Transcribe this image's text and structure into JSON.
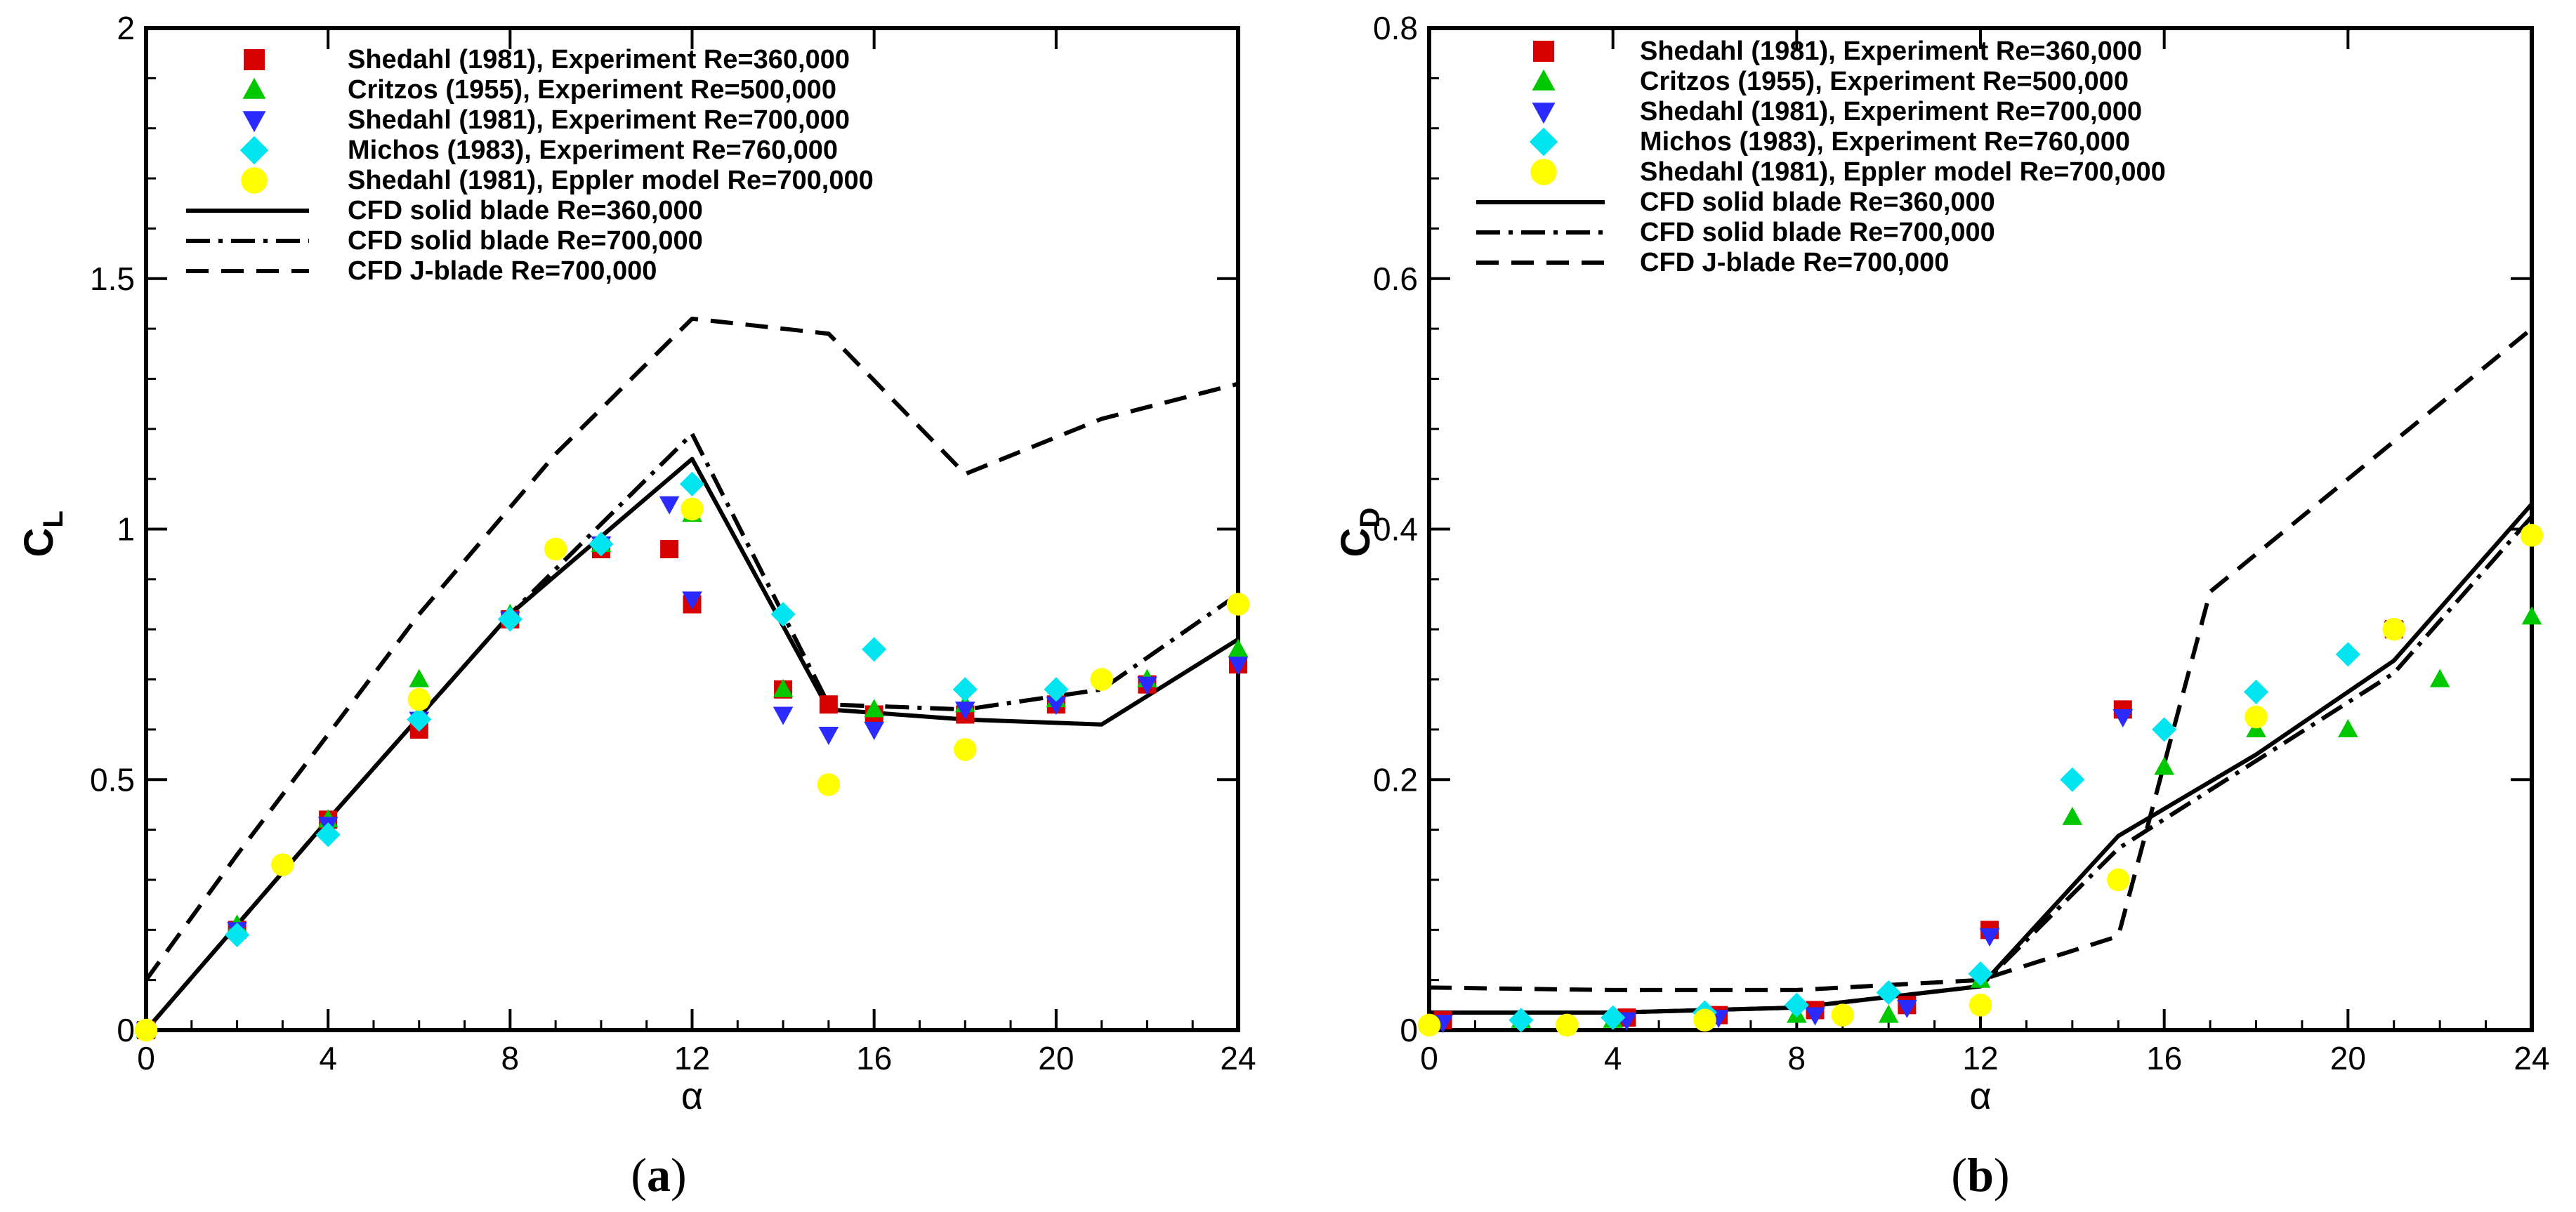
{
  "chart_data": [
    {
      "id": "a",
      "type": "scatter",
      "caption_open": "(",
      "caption_letter": "a",
      "caption_close": ")",
      "ylabel_main": "C",
      "ylabel_sub": "L",
      "xlabel": "α",
      "xlim": [
        0,
        24
      ],
      "ylim": [
        0,
        2
      ],
      "xticks": [
        0,
        4,
        8,
        12,
        16,
        20,
        24
      ],
      "xtick_labels": [
        "0",
        "4",
        "8",
        "12",
        "16",
        "20",
        "24"
      ],
      "yticks": [
        0,
        0.5,
        1,
        1.5,
        2
      ],
      "ytick_labels": [
        "0",
        "0.5",
        "1",
        "1.5",
        "2"
      ],
      "legend_position": "top-left",
      "series": [
        {
          "name": "Shedahl (1981), Experiment Re=360,000",
          "marker": "square",
          "color": "#d60000",
          "points": [
            [
              0,
              0
            ],
            [
              2,
              0.2
            ],
            [
              4,
              0.42
            ],
            [
              6,
              0.6
            ],
            [
              8,
              0.82
            ],
            [
              10,
              0.96
            ],
            [
              11.5,
              0.96
            ],
            [
              12,
              0.85
            ],
            [
              14,
              0.68
            ],
            [
              15,
              0.65
            ],
            [
              16,
              0.63
            ],
            [
              18,
              0.63
            ],
            [
              20,
              0.65
            ],
            [
              22,
              0.69
            ],
            [
              24,
              0.73
            ]
          ]
        },
        {
          "name": "Critzos (1955), Experiment Re=500,000",
          "marker": "triangle-up",
          "color": "#00c800",
          "points": [
            [
              0,
              0
            ],
            [
              2,
              0.21
            ],
            [
              4,
              0.42
            ],
            [
              6,
              0.7
            ],
            [
              8,
              0.83
            ],
            [
              10,
              0.97
            ],
            [
              12,
              1.03
            ],
            [
              14,
              0.68
            ],
            [
              16,
              0.64
            ],
            [
              18,
              0.65
            ],
            [
              20,
              0.66
            ],
            [
              22,
              0.7
            ],
            [
              24,
              0.76
            ]
          ]
        },
        {
          "name": "Shedahl (1981), Experiment Re=700,000",
          "marker": "triangle-down",
          "color": "#2b2bff",
          "points": [
            [
              0,
              0
            ],
            [
              2,
              0.2
            ],
            [
              4,
              0.41
            ],
            [
              6,
              0.62
            ],
            [
              8,
              0.82
            ],
            [
              10,
              0.97
            ],
            [
              11.5,
              1.05
            ],
            [
              12,
              0.86
            ],
            [
              14,
              0.63
            ],
            [
              15,
              0.59
            ],
            [
              16,
              0.6
            ],
            [
              18,
              0.64
            ],
            [
              20,
              0.65
            ],
            [
              22,
              0.69
            ],
            [
              24,
              0.73
            ]
          ]
        },
        {
          "name": "Michos (1983), Experiment Re=760,000",
          "marker": "diamond",
          "color": "#00e5f0",
          "points": [
            [
              2,
              0.19
            ],
            [
              4,
              0.39
            ],
            [
              6,
              0.62
            ],
            [
              8,
              0.82
            ],
            [
              10,
              0.97
            ],
            [
              12,
              1.09
            ],
            [
              14,
              0.83
            ],
            [
              16,
              0.76
            ],
            [
              18,
              0.68
            ],
            [
              20,
              0.68
            ]
          ]
        },
        {
          "name": "Shedahl (1981), Eppler model Re=700,000",
          "marker": "circle",
          "color": "#ffff00",
          "points": [
            [
              0,
              0
            ],
            [
              3,
              0.33
            ],
            [
              6,
              0.66
            ],
            [
              9,
              0.96
            ],
            [
              12,
              1.04
            ],
            [
              15,
              0.49
            ],
            [
              18,
              0.56
            ],
            [
              21,
              0.7
            ],
            [
              24,
              0.85
            ]
          ]
        }
      ],
      "lines": [
        {
          "name": "CFD solid blade Re=360,000",
          "style": "solid",
          "points": [
            [
              0,
              0
            ],
            [
              4,
              0.42
            ],
            [
              8,
              0.83
            ],
            [
              12,
              1.14
            ],
            [
              15,
              0.64
            ],
            [
              18,
              0.62
            ],
            [
              21,
              0.61
            ],
            [
              24,
              0.78
            ]
          ]
        },
        {
          "name": "CFD solid blade Re=700,000",
          "style": "dashdot",
          "points": [
            [
              0,
              0
            ],
            [
              4,
              0.42
            ],
            [
              8,
              0.83
            ],
            [
              12,
              1.19
            ],
            [
              15,
              0.65
            ],
            [
              18,
              0.64
            ],
            [
              21,
              0.68
            ],
            [
              24,
              0.87
            ]
          ]
        },
        {
          "name": "CFD J-blade Re=700,000",
          "style": "dashed",
          "points": [
            [
              0,
              0.1
            ],
            [
              2,
              0.35
            ],
            [
              6,
              0.83
            ],
            [
              9,
              1.15
            ],
            [
              12,
              1.42
            ],
            [
              15,
              1.39
            ],
            [
              18,
              1.11
            ],
            [
              21,
              1.22
            ],
            [
              24,
              1.29
            ]
          ]
        }
      ]
    },
    {
      "id": "b",
      "type": "scatter",
      "caption_open": "(",
      "caption_letter": "b",
      "caption_close": ")",
      "ylabel_main": "C",
      "ylabel_sub": "D",
      "xlabel": "α",
      "xlim": [
        0,
        24
      ],
      "ylim": [
        0,
        0.8
      ],
      "xticks": [
        0,
        4,
        8,
        12,
        16,
        20,
        24
      ],
      "xtick_labels": [
        "0",
        "4",
        "8",
        "12",
        "16",
        "20",
        "24"
      ],
      "yticks": [
        0,
        0.2,
        0.4,
        0.6,
        0.8
      ],
      "ytick_labels": [
        "0",
        "0.2",
        "0.4",
        "0.6",
        "0.8"
      ],
      "legend_position": "top-left",
      "series": [
        {
          "name": "Shedahl (1981), Experiment Re=360,000",
          "marker": "square",
          "color": "#d60000",
          "points": [
            [
              0.3,
              0.008
            ],
            [
              4.3,
              0.01
            ],
            [
              6.3,
              0.012
            ],
            [
              8.4,
              0.016
            ],
            [
              10.4,
              0.02
            ],
            [
              12.2,
              0.08
            ],
            [
              15.1,
              0.256
            ],
            [
              21,
              0.32
            ]
          ]
        },
        {
          "name": "Critzos (1955), Experiment Re=500,000",
          "marker": "triangle-up",
          "color": "#00c800",
          "points": [
            [
              2,
              0.008
            ],
            [
              4,
              0.008
            ],
            [
              6,
              0.01
            ],
            [
              8,
              0.012
            ],
            [
              10,
              0.012
            ],
            [
              12,
              0.04
            ],
            [
              14,
              0.17
            ],
            [
              16,
              0.21
            ],
            [
              18,
              0.24
            ],
            [
              20,
              0.24
            ],
            [
              22,
              0.28
            ],
            [
              24,
              0.33
            ]
          ]
        },
        {
          "name": "Shedahl (1981), Experiment Re=700,000",
          "marker": "triangle-down",
          "color": "#2b2bff",
          "points": [
            [
              0.3,
              0.006
            ],
            [
              4.3,
              0.008
            ],
            [
              6.3,
              0.01
            ],
            [
              8.4,
              0.012
            ],
            [
              10.4,
              0.018
            ],
            [
              12.2,
              0.075
            ],
            [
              15.1,
              0.25
            ],
            [
              21,
              0.32
            ]
          ]
        },
        {
          "name": "Michos (1983), Experiment Re=760,000",
          "marker": "diamond",
          "color": "#00e5f0",
          "points": [
            [
              2,
              0.008
            ],
            [
              4,
              0.01
            ],
            [
              6,
              0.014
            ],
            [
              8,
              0.02
            ],
            [
              10,
              0.03
            ],
            [
              12,
              0.045
            ],
            [
              14,
              0.2
            ],
            [
              16,
              0.24
            ],
            [
              18,
              0.27
            ],
            [
              20,
              0.3
            ]
          ]
        },
        {
          "name": "Shedahl (1981), Eppler model Re=700,000",
          "marker": "circle",
          "color": "#ffff00",
          "points": [
            [
              0,
              0.004
            ],
            [
              3,
              0.004
            ],
            [
              6,
              0.008
            ],
            [
              9,
              0.012
            ],
            [
              12,
              0.02
            ],
            [
              15,
              0.12
            ],
            [
              18,
              0.25
            ],
            [
              21,
              0.32
            ],
            [
              24,
              0.395
            ]
          ]
        }
      ],
      "lines": [
        {
          "name": "CFD solid blade Re=360,000",
          "style": "solid",
          "points": [
            [
              0,
              0.014
            ],
            [
              4,
              0.014
            ],
            [
              8,
              0.018
            ],
            [
              12,
              0.035
            ],
            [
              15,
              0.155
            ],
            [
              18,
              0.22
            ],
            [
              21,
              0.295
            ],
            [
              24,
              0.42
            ]
          ]
        },
        {
          "name": "CFD solid blade Re=700,000",
          "style": "dashdot",
          "points": [
            [
              0,
              0.014
            ],
            [
              4,
              0.014
            ],
            [
              8,
              0.018
            ],
            [
              12,
              0.035
            ],
            [
              15,
              0.145
            ],
            [
              18,
              0.215
            ],
            [
              21,
              0.285
            ],
            [
              24,
              0.41
            ]
          ]
        },
        {
          "name": "CFD J-blade Re=700,000",
          "style": "dashed",
          "points": [
            [
              0,
              0.034
            ],
            [
              4,
              0.032
            ],
            [
              8,
              0.032
            ],
            [
              12,
              0.04
            ],
            [
              15,
              0.075
            ],
            [
              17,
              0.35
            ],
            [
              21,
              0.47
            ],
            [
              24,
              0.56
            ]
          ]
        }
      ]
    }
  ]
}
